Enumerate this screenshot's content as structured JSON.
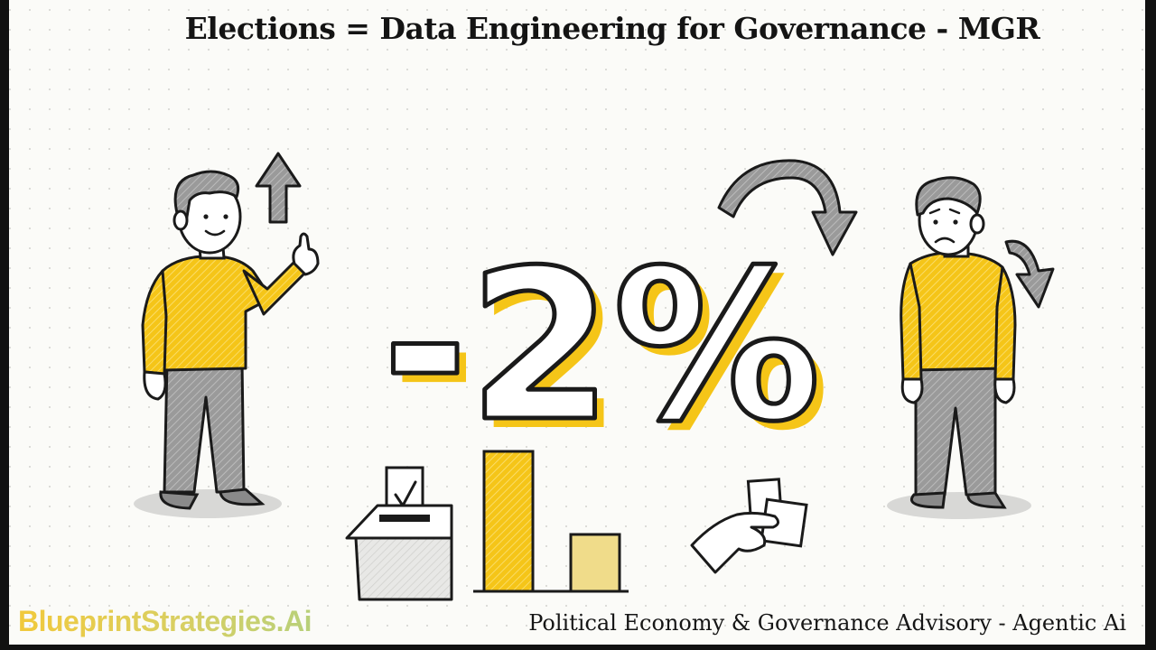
{
  "title": "Elections = Data Engineering for Governance - MGR",
  "headline_value": "-2%",
  "brand_name": "BlueprintStrategies.Ai",
  "tagline": "Political Economy & Governance Advisory - Agentic Ai",
  "colors": {
    "accent_yellow": "#f5c518",
    "ink": "#1a1a1a",
    "pants_gray": "#9a9a9a",
    "arrow_gray": "#8f8f8f"
  },
  "illustration": {
    "left_figure": "happy-person-pointing-up",
    "right_figure": "sad-person",
    "icons": [
      "up-arrow-icon",
      "curved-down-arrow-icon",
      "ballot-box-icon",
      "bar-chart-icon",
      "hand-with-cash-icon"
    ]
  }
}
